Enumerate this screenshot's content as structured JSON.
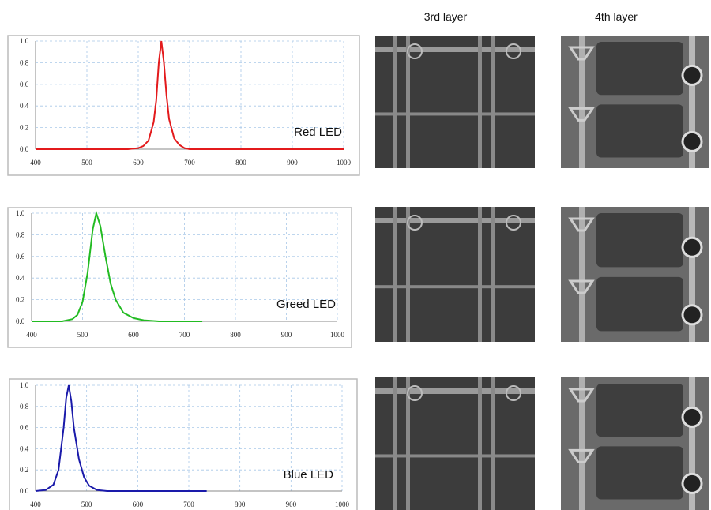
{
  "image_headers": [
    "3rd layer",
    "4th layer"
  ],
  "chart_data": [
    {
      "type": "line",
      "annotation": "Red LED",
      "series": [
        {
          "color": "#e31a1c",
          "x": [
            400,
            580,
            600,
            610,
            620,
            630,
            635,
            640,
            645,
            650,
            655,
            660,
            670,
            680,
            690,
            700,
            1000
          ],
          "values": [
            0,
            0,
            0.01,
            0.03,
            0.08,
            0.25,
            0.45,
            0.8,
            1.0,
            0.8,
            0.5,
            0.28,
            0.1,
            0.04,
            0.01,
            0,
            0
          ]
        }
      ],
      "xlim": [
        400,
        1000
      ],
      "xticks": [
        400,
        500,
        600,
        700,
        800,
        900,
        1000
      ],
      "ylim": [
        0,
        1
      ],
      "yticks": [
        {
          "value": 0,
          "label": "0.0"
        },
        0.2,
        0.4,
        0.6,
        0.8,
        {
          "value": 1,
          "label": "1.0"
        }
      ],
      "grid": true
    },
    {
      "type": "line",
      "annotation": "Greed LED",
      "series": [
        {
          "color": "#22bb22",
          "x": [
            400,
            460,
            480,
            490,
            500,
            510,
            520,
            527,
            535,
            545,
            555,
            565,
            580,
            600,
            620,
            650,
            735
          ],
          "values": [
            0,
            0,
            0.02,
            0.06,
            0.18,
            0.45,
            0.85,
            1.0,
            0.88,
            0.6,
            0.35,
            0.2,
            0.08,
            0.03,
            0.01,
            0,
            0
          ]
        }
      ],
      "xlim": [
        400,
        1000
      ],
      "xticks": [
        400,
        500,
        600,
        700,
        800,
        900,
        1000
      ],
      "ylim": [
        0,
        1
      ],
      "yticks": [
        {
          "value": 0,
          "label": "0.0"
        },
        0.2,
        0.4,
        0.6,
        0.8,
        {
          "value": 1,
          "label": "1.0"
        }
      ],
      "grid": true
    },
    {
      "type": "line",
      "annotation": "Blue LED",
      "series": [
        {
          "color": "#1a1aaa",
          "x": [
            400,
            420,
            435,
            445,
            455,
            460,
            465,
            470,
            475,
            485,
            495,
            505,
            520,
            540,
            735
          ],
          "values": [
            0,
            0.01,
            0.06,
            0.2,
            0.6,
            0.88,
            1.0,
            0.85,
            0.6,
            0.3,
            0.13,
            0.05,
            0.01,
            0,
            0
          ]
        }
      ],
      "xlim": [
        400,
        1000
      ],
      "xticks": [
        400,
        500,
        600,
        700,
        800,
        900,
        1000
      ],
      "ylim": [
        0,
        1
      ],
      "yticks": [
        {
          "value": 0,
          "label": "0.0"
        },
        0.2,
        0.4,
        0.6,
        0.8,
        {
          "value": 1,
          "label": "1.0"
        }
      ],
      "grid": true
    }
  ]
}
